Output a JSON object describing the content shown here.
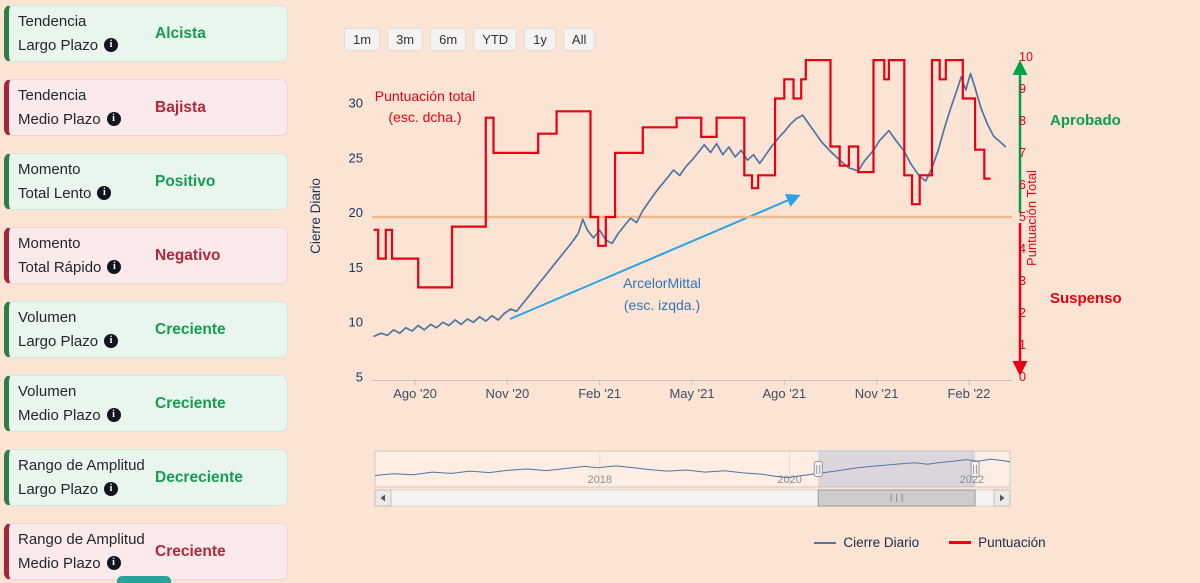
{
  "colors": {
    "background": "#fce4d4",
    "positive": "#169c4f",
    "negative": "#b32638",
    "price_line": "#4f74a3",
    "score_line": "#e60112",
    "threshold": "#eeb98b",
    "approved_green": "#0a9e4e",
    "failed_red": "#e60112",
    "annotation_blue": "#2e75b6",
    "arrow_blue": "#29a3e3"
  },
  "sidebar": {
    "cards": [
      {
        "line1": "Tendencia",
        "line2": "Largo Plazo",
        "value": "Alcista",
        "status": "positive"
      },
      {
        "line1": "Tendencia",
        "line2": "Medio Plazo",
        "value": "Bajista",
        "status": "negative"
      },
      {
        "line1": "Momento",
        "line2": "Total Lento",
        "value": "Positivo",
        "status": "positive"
      },
      {
        "line1": "Momento",
        "line2": "Total Rápido",
        "value": "Negativo",
        "status": "negative"
      },
      {
        "line1": "Volumen",
        "line2": "Largo Plazo",
        "value": "Creciente",
        "status": "positive"
      },
      {
        "line1": "Volumen",
        "line2": "Medio Plazo",
        "value": "Creciente",
        "status": "positive"
      },
      {
        "line1": "Rango de Amplitud",
        "line2": "Largo Plazo",
        "value": "Decreciente",
        "status": "positive"
      },
      {
        "line1": "Rango de Amplitud",
        "line2": "Medio Plazo",
        "value": "Creciente",
        "status": "negative"
      }
    ]
  },
  "range_selector": {
    "buttons": [
      "1m",
      "3m",
      "6m",
      "YTD",
      "1y",
      "All"
    ]
  },
  "chart_data": {
    "type": "line",
    "x_unit": "months_from_2020-07",
    "x_axis": {
      "labels": [
        "Ago '20",
        "Nov '20",
        "Feb '21",
        "May '21",
        "Ago '21",
        "Nov '21",
        "Feb '22"
      ],
      "label_positions_months": [
        1,
        4,
        7,
        10,
        13,
        16,
        19
      ],
      "range_months": [
        -0.4,
        20.4
      ]
    },
    "y_left": {
      "title": "Cierre Diario",
      "ticks": [
        5,
        10,
        15,
        20,
        25,
        30
      ],
      "range": [
        5,
        34.4
      ]
    },
    "y_right": {
      "title": "Puntuación Total",
      "ticks": [
        0,
        1,
        2,
        3,
        4,
        5,
        6,
        7,
        8,
        9,
        10
      ],
      "range": [
        0,
        10.06
      ]
    },
    "threshold": {
      "value": 5,
      "axis": "right",
      "color": "#eeb98b"
    },
    "series": [
      {
        "name": "Cierre Diario",
        "axis": "left",
        "color": "#4f74a3",
        "type": "line",
        "points": [
          [
            -0.35,
            8.7
          ],
          [
            -0.1,
            9.0
          ],
          [
            0.1,
            8.8
          ],
          [
            0.3,
            9.3
          ],
          [
            0.5,
            9.0
          ],
          [
            0.7,
            9.5
          ],
          [
            0.9,
            9.2
          ],
          [
            1.1,
            9.7
          ],
          [
            1.3,
            9.3
          ],
          [
            1.5,
            9.8
          ],
          [
            1.7,
            9.5
          ],
          [
            1.9,
            10.0
          ],
          [
            2.1,
            9.7
          ],
          [
            2.3,
            10.2
          ],
          [
            2.5,
            9.8
          ],
          [
            2.7,
            10.3
          ],
          [
            2.9,
            10.0
          ],
          [
            3.1,
            10.5
          ],
          [
            3.3,
            10.1
          ],
          [
            3.5,
            10.6
          ],
          [
            3.7,
            10.2
          ],
          [
            3.9,
            10.8
          ],
          [
            4.1,
            11.2
          ],
          [
            4.3,
            11.0
          ],
          [
            4.5,
            11.7
          ],
          [
            4.7,
            12.4
          ],
          [
            4.9,
            13.1
          ],
          [
            5.1,
            13.8
          ],
          [
            5.3,
            14.5
          ],
          [
            5.5,
            15.2
          ],
          [
            5.7,
            15.9
          ],
          [
            5.9,
            16.6
          ],
          [
            6.1,
            17.3
          ],
          [
            6.3,
            18.1
          ],
          [
            6.45,
            19.4
          ],
          [
            6.6,
            18.4
          ],
          [
            6.8,
            17.7
          ],
          [
            7.0,
            18.4
          ],
          [
            7.2,
            17.5
          ],
          [
            7.4,
            17.2
          ],
          [
            7.6,
            18.1
          ],
          [
            7.8,
            18.8
          ],
          [
            8.0,
            19.5
          ],
          [
            8.2,
            19.1
          ],
          [
            8.4,
            20.2
          ],
          [
            8.6,
            21.0
          ],
          [
            8.8,
            21.8
          ],
          [
            9.0,
            22.5
          ],
          [
            9.2,
            23.2
          ],
          [
            9.4,
            23.9
          ],
          [
            9.6,
            23.4
          ],
          [
            9.8,
            24.2
          ],
          [
            10.0,
            24.8
          ],
          [
            10.2,
            25.5
          ],
          [
            10.4,
            26.2
          ],
          [
            10.6,
            25.5
          ],
          [
            10.8,
            26.3
          ],
          [
            11.0,
            25.3
          ],
          [
            11.2,
            26.0
          ],
          [
            11.4,
            25.1
          ],
          [
            11.6,
            25.7
          ],
          [
            11.8,
            24.8
          ],
          [
            12.0,
            25.3
          ],
          [
            12.2,
            24.5
          ],
          [
            12.4,
            25.3
          ],
          [
            12.6,
            26.1
          ],
          [
            12.8,
            26.8
          ],
          [
            13.0,
            27.4
          ],
          [
            13.2,
            28.1
          ],
          [
            13.4,
            28.6
          ],
          [
            13.6,
            28.9
          ],
          [
            13.8,
            28.1
          ],
          [
            14.0,
            27.3
          ],
          [
            14.2,
            26.5
          ],
          [
            14.5,
            25.6
          ],
          [
            14.8,
            24.8
          ],
          [
            15.1,
            24.1
          ],
          [
            15.4,
            23.8
          ],
          [
            15.6,
            24.7
          ],
          [
            15.9,
            25.7
          ],
          [
            16.1,
            26.6
          ],
          [
            16.4,
            27.5
          ],
          [
            16.6,
            26.7
          ],
          [
            16.9,
            25.6
          ],
          [
            17.1,
            24.5
          ],
          [
            17.4,
            23.3
          ],
          [
            17.6,
            22.9
          ],
          [
            17.8,
            24.1
          ],
          [
            18.0,
            25.7
          ],
          [
            18.2,
            27.7
          ],
          [
            18.4,
            29.5
          ],
          [
            18.6,
            31.1
          ],
          [
            18.75,
            32.4
          ],
          [
            18.9,
            31.2
          ],
          [
            19.05,
            32.7
          ],
          [
            19.2,
            31.4
          ],
          [
            19.4,
            29.5
          ],
          [
            19.6,
            28.1
          ],
          [
            19.8,
            27.0
          ],
          [
            20.0,
            26.5
          ],
          [
            20.2,
            26.0
          ]
        ]
      },
      {
        "name": "Puntuación",
        "axis": "right",
        "color": "#e60112",
        "type": "step",
        "end_month": 19.7,
        "points": [
          [
            -0.35,
            4.6
          ],
          [
            -0.2,
            3.7
          ],
          [
            0.05,
            4.6
          ],
          [
            0.25,
            3.7
          ],
          [
            1.1,
            2.8
          ],
          [
            2.2,
            4.7
          ],
          [
            3.3,
            8.1
          ],
          [
            3.55,
            7.0
          ],
          [
            5.0,
            7.6
          ],
          [
            5.6,
            8.3
          ],
          [
            6.7,
            5.0
          ],
          [
            6.95,
            4.1
          ],
          [
            7.2,
            5.0
          ],
          [
            7.5,
            7.0
          ],
          [
            8.4,
            7.8
          ],
          [
            9.5,
            8.1
          ],
          [
            10.3,
            7.5
          ],
          [
            10.8,
            8.1
          ],
          [
            11.7,
            6.3
          ],
          [
            11.95,
            5.9
          ],
          [
            12.15,
            6.3
          ],
          [
            12.7,
            8.7
          ],
          [
            13.0,
            9.3
          ],
          [
            13.3,
            8.7
          ],
          [
            13.55,
            9.3
          ],
          [
            13.7,
            9.9
          ],
          [
            14.5,
            7.2
          ],
          [
            14.8,
            6.6
          ],
          [
            15.1,
            7.2
          ],
          [
            15.4,
            6.4
          ],
          [
            15.9,
            9.9
          ],
          [
            16.25,
            9.3
          ],
          [
            16.4,
            9.9
          ],
          [
            16.9,
            6.3
          ],
          [
            17.15,
            5.4
          ],
          [
            17.4,
            6.3
          ],
          [
            17.8,
            9.9
          ],
          [
            18.05,
            9.3
          ],
          [
            18.25,
            9.9
          ],
          [
            18.8,
            8.7
          ],
          [
            19.2,
            7.1
          ],
          [
            19.5,
            6.2
          ]
        ]
      }
    ],
    "annotations": {
      "score_label": [
        "Puntuación total",
        "(esc. dcha.)"
      ],
      "price_label": [
        "ArcelorMittal",
        "(esc. izqda.)"
      ],
      "approved": "Aprobado",
      "failed": "Suspenso"
    }
  },
  "navigator": {
    "years": [
      "2018",
      "2020",
      "2022"
    ],
    "year_positions": [
      0.354,
      0.653,
      0.94
    ],
    "selection": [
      0.698,
      0.945
    ],
    "minimap": [
      [
        0.0,
        0.25
      ],
      [
        0.03,
        0.32
      ],
      [
        0.06,
        0.28
      ],
      [
        0.09,
        0.38
      ],
      [
        0.12,
        0.33
      ],
      [
        0.15,
        0.42
      ],
      [
        0.18,
        0.36
      ],
      [
        0.21,
        0.45
      ],
      [
        0.24,
        0.5
      ],
      [
        0.27,
        0.44
      ],
      [
        0.3,
        0.52
      ],
      [
        0.33,
        0.6
      ],
      [
        0.35,
        0.55
      ],
      [
        0.38,
        0.62
      ],
      [
        0.4,
        0.57
      ],
      [
        0.43,
        0.48
      ],
      [
        0.46,
        0.42
      ],
      [
        0.49,
        0.46
      ],
      [
        0.52,
        0.38
      ],
      [
        0.55,
        0.43
      ],
      [
        0.58,
        0.35
      ],
      [
        0.61,
        0.3
      ],
      [
        0.63,
        0.22
      ],
      [
        0.65,
        0.16
      ],
      [
        0.67,
        0.24
      ],
      [
        0.7,
        0.34
      ],
      [
        0.73,
        0.44
      ],
      [
        0.76,
        0.55
      ],
      [
        0.79,
        0.62
      ],
      [
        0.82,
        0.68
      ],
      [
        0.85,
        0.74
      ],
      [
        0.87,
        0.68
      ],
      [
        0.89,
        0.75
      ],
      [
        0.91,
        0.8
      ],
      [
        0.93,
        0.86
      ],
      [
        0.95,
        0.8
      ],
      [
        0.97,
        0.88
      ],
      [
        0.99,
        0.82
      ],
      [
        1.0,
        0.78
      ]
    ]
  },
  "legend": [
    {
      "label": "Cierre Diario",
      "color": "#4f74a3"
    },
    {
      "label": "Puntuación",
      "color": "#e60112"
    }
  ]
}
